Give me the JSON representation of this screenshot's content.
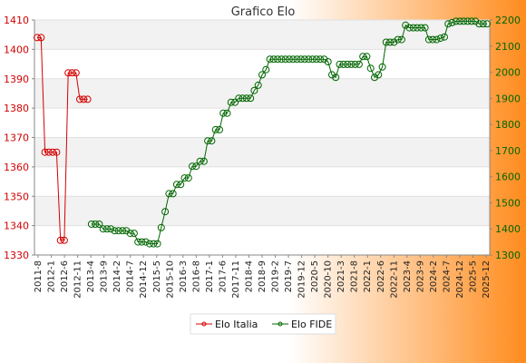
{
  "chart_data": {
    "type": "line",
    "title": "Grafico Elo",
    "background": {
      "left": "#ffffff",
      "right": "#ff8c1e"
    },
    "grid": true,
    "legend_position": "bottom",
    "y_left": {
      "range": [
        1330,
        1410
      ],
      "ticks": [
        1330,
        1340,
        1350,
        1360,
        1370,
        1380,
        1390,
        1400,
        1410
      ],
      "color": "#d40000"
    },
    "y_right": {
      "range": [
        1300,
        2200
      ],
      "ticks": [
        1300,
        1400,
        1500,
        1600,
        1700,
        1800,
        1900,
        2000,
        2100,
        2200
      ],
      "color": "#006600"
    },
    "x_labels": [
      "2011-8",
      "2012-1",
      "2012-6",
      "2012-11",
      "2013-4",
      "2013-9",
      "2014-2",
      "2014-7",
      "2014-12",
      "2015-5",
      "2015-10",
      "2016-3",
      "2016-8",
      "2017-1",
      "2017-6",
      "2017-11",
      "2018-4",
      "2018-9",
      "2019-2",
      "2019-7",
      "2019-12",
      "2020-5",
      "2020-10",
      "2021-3",
      "2021-8",
      "2022-1",
      "2022-6",
      "2022-11",
      "2023-4",
      "2023-9",
      "2024-2",
      "2024-7",
      "2024-12",
      "2025-5",
      "2025-12"
    ],
    "series": [
      {
        "name": "Elo Italia",
        "axis": "left",
        "color": "#d40000",
        "values": [
          1404,
          1404,
          1365,
          1365,
          1365,
          1365,
          1335,
          1335,
          1392,
          1392,
          1392,
          1383,
          1383,
          1383
        ]
      },
      {
        "name": "Elo FIDE",
        "axis": "right",
        "color": "#006600",
        "start_index": 14,
        "values": [
          1418,
          1418,
          1418,
          1400,
          1400,
          1400,
          1393,
          1393,
          1393,
          1393,
          1383,
          1383,
          1350,
          1350,
          1350,
          1343,
          1343,
          1343,
          1405,
          1466,
          1535,
          1535,
          1570,
          1570,
          1595,
          1595,
          1640,
          1640,
          1659,
          1659,
          1737,
          1737,
          1780,
          1780,
          1843,
          1843,
          1885,
          1885,
          1900,
          1900,
          1900,
          1900,
          1930,
          1950,
          1990,
          2010,
          2050,
          2050,
          2050,
          2050,
          2050,
          2050,
          2050,
          2050,
          2050,
          2050,
          2050,
          2050,
          2050,
          2050,
          2050,
          2040,
          1990,
          1980,
          2030,
          2030,
          2030,
          2030,
          2030,
          2030,
          2060,
          2060,
          2015,
          1980,
          1990,
          2020,
          2115,
          2115,
          2115,
          2125,
          2125,
          2180,
          2170,
          2170,
          2170,
          2170,
          2170,
          2125,
          2125,
          2125,
          2130,
          2135,
          2185,
          2190,
          2195,
          2195,
          2195,
          2195,
          2195,
          2195,
          2185,
          2185,
          2185
        ]
      }
    ]
  }
}
